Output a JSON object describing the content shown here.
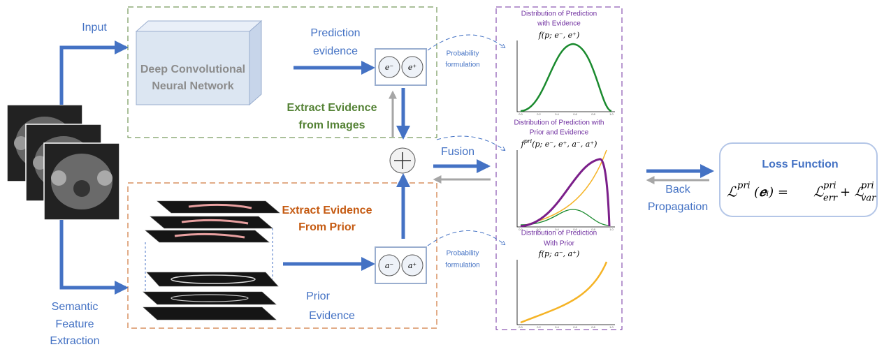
{
  "input_label": "Input",
  "semantic_label": [
    "Semantic",
    "Feature",
    "Extraction"
  ],
  "network": [
    "Deep Convolutional",
    "Neural Network"
  ],
  "prediction_evidence": [
    "Prediction",
    "evidence"
  ],
  "evidence_symbols": [
    "e⁻",
    "e⁺"
  ],
  "extract_images": [
    "Extract Evidence",
    "from Images"
  ],
  "extract_prior": [
    "Extract Evidence",
    "From Prior"
  ],
  "prior_evidence": [
    "Prior",
    "Evidence"
  ],
  "prior_symbols": [
    "a⁻",
    "a⁺"
  ],
  "fusion_label": "Fusion",
  "probability_formulation": [
    "Probability",
    "formulation"
  ],
  "axis_ticks": [
    "0.0",
    "0.2",
    "0.4",
    "0.6",
    "0.8",
    "1.0"
  ],
  "plots": [
    {
      "title": [
        "Distribution of Prediction",
        "with Evidence"
      ],
      "formula": "f(p; e⁻, e⁺)"
    },
    {
      "title": [
        "Distribution of Prediction with",
        "Prior and Evidence"
      ],
      "formula": [
        "f",
        "pri",
        "(p; e⁻, e⁺, a⁻, a⁺)"
      ]
    },
    {
      "title": [
        "Distribution of Prediction",
        "With Prior"
      ],
      "formula": "f(p; a⁻, a⁺)"
    }
  ],
  "back_propagation": [
    "Back",
    "Propagation"
  ],
  "loss": {
    "title": "Loss Function",
    "formula": [
      "ℒ",
      "pri",
      "(𝒆ᵢ) =",
      "ℒ",
      "pri",
      "err",
      "+ ℒ",
      "pri",
      "var"
    ]
  }
}
